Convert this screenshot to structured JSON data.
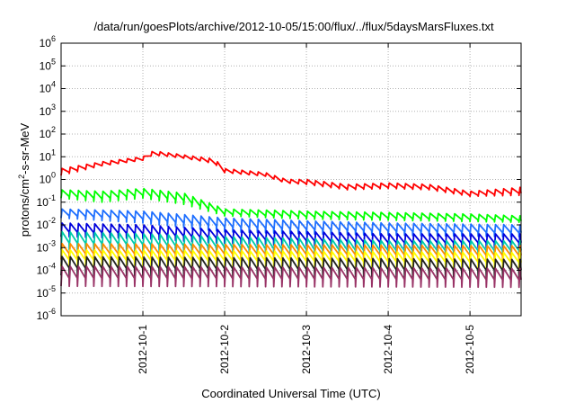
{
  "chart_data": {
    "type": "line",
    "title": "/data/run/goesPlots/archive/2012-10-05/15:00/flux/../flux/5daysMarsFluxes.txt",
    "xlabel": "Coordinated Universal Time (UTC)",
    "ylabel": {
      "base": "protons/cm",
      "sup": "2",
      "rest": "-s-sr-MeV"
    },
    "y_scale": "log",
    "ylim": [
      1e-06,
      1000000.0
    ],
    "y_ticks": [
      {
        "base": "10",
        "exp": "-6"
      },
      {
        "base": "10",
        "exp": "-5"
      },
      {
        "base": "10",
        "exp": "-4"
      },
      {
        "base": "10",
        "exp": "-3"
      },
      {
        "base": "10",
        "exp": "-2"
      },
      {
        "base": "10",
        "exp": "-1"
      },
      {
        "base": "10",
        "exp": "0"
      },
      {
        "base": "10",
        "exp": "1"
      },
      {
        "base": "10",
        "exp": "2"
      },
      {
        "base": "10",
        "exp": "3"
      },
      {
        "base": "10",
        "exp": "4"
      },
      {
        "base": "10",
        "exp": "5"
      },
      {
        "base": "10",
        "exp": "6"
      }
    ],
    "x_ticks": [
      "2012-10-1",
      "2012-10-2",
      "2012-10-3",
      "2012-10-4",
      "2012-10-5"
    ],
    "xlim": [
      "2012-09-30 00:00",
      "2012-10-05 15:00"
    ],
    "grid": true,
    "legend": "none",
    "series": [
      {
        "color": "#ff0000",
        "peaks": [
          [
            "2012-09-30 00:00",
            3
          ],
          [
            "2012-09-30 12:00",
            6
          ],
          [
            "2012-10-01 00:00",
            10
          ],
          [
            "2012-10-01 03:00",
            18
          ],
          [
            "2012-10-01 12:00",
            12
          ],
          [
            "2012-10-01 21:00",
            8
          ],
          [
            "2012-10-02 00:00",
            3
          ],
          [
            "2012-10-02 12:00",
            2
          ],
          [
            "2012-10-02 18:00",
            1
          ],
          [
            "2012-10-03 00:00",
            1
          ],
          [
            "2012-10-03 12:00",
            0.6
          ],
          [
            "2012-10-04 00:00",
            0.7
          ],
          [
            "2012-10-04 12:00",
            0.6
          ],
          [
            "2012-10-05 00:00",
            0.3
          ],
          [
            "2012-10-05 15:00",
            0.45
          ]
        ],
        "troughs": [
          [
            "2012-09-30 00:00",
            1.5
          ],
          [
            "2012-09-30 12:00",
            4
          ],
          [
            "2012-10-01 00:00",
            7
          ],
          [
            "2012-10-01 03:00",
            12
          ],
          [
            "2012-10-01 12:00",
            9
          ],
          [
            "2012-10-01 21:00",
            5
          ],
          [
            "2012-10-02 00:00",
            2
          ],
          [
            "2012-10-02 12:00",
            1.4
          ],
          [
            "2012-10-02 18:00",
            0.7
          ],
          [
            "2012-10-03 00:00",
            0.6
          ],
          [
            "2012-10-03 12:00",
            0.35
          ],
          [
            "2012-10-04 00:00",
            0.4
          ],
          [
            "2012-10-04 12:00",
            0.35
          ],
          [
            "2012-10-05 00:00",
            0.18
          ],
          [
            "2012-10-05 15:00",
            0.2
          ]
        ]
      },
      {
        "color": "#00ff00",
        "peaks": [
          [
            "2012-09-30 00:00",
            0.35
          ],
          [
            "2012-09-30 12:00",
            0.3
          ],
          [
            "2012-10-01 00:00",
            0.4
          ],
          [
            "2012-10-01 12:00",
            0.25
          ],
          [
            "2012-10-02 00:00",
            0.05
          ],
          [
            "2012-10-03 00:00",
            0.04
          ],
          [
            "2012-10-04 00:00",
            0.035
          ],
          [
            "2012-10-05 00:00",
            0.03
          ],
          [
            "2012-10-05 15:00",
            0.025
          ]
        ],
        "troughs": [
          [
            "2012-09-30 00:00",
            0.15
          ],
          [
            "2012-09-30 12:00",
            0.1
          ],
          [
            "2012-10-01 00:00",
            0.15
          ],
          [
            "2012-10-01 12:00",
            0.08
          ],
          [
            "2012-10-02 00:00",
            0.025
          ],
          [
            "2012-10-03 00:00",
            0.018
          ],
          [
            "2012-10-04 00:00",
            0.016
          ],
          [
            "2012-10-05 00:00",
            0.014
          ],
          [
            "2012-10-05 15:00",
            0.013
          ]
        ]
      },
      {
        "color": "#1e6fff",
        "peaks": [
          [
            "2012-09-30 00:00",
            0.05
          ],
          [
            "2012-10-01 00:00",
            0.04
          ],
          [
            "2012-10-02 00:00",
            0.02
          ],
          [
            "2012-10-03 00:00",
            0.015
          ],
          [
            "2012-10-04 00:00",
            0.012
          ],
          [
            "2012-10-05 15:00",
            0.01
          ]
        ],
        "troughs": [
          [
            "2012-09-30 00:00",
            0.02
          ],
          [
            "2012-10-01 00:00",
            0.012
          ],
          [
            "2012-10-02 00:00",
            0.005
          ],
          [
            "2012-10-03 00:00",
            0.004
          ],
          [
            "2012-10-04 00:00",
            0.0035
          ],
          [
            "2012-10-05 15:00",
            0.003
          ]
        ]
      },
      {
        "color": "#0000dd",
        "peaks": [
          [
            "2012-09-30 00:00",
            0.012
          ],
          [
            "2012-10-01 00:00",
            0.01
          ],
          [
            "2012-10-02 00:00",
            0.006
          ],
          [
            "2012-10-03 00:00",
            0.005
          ],
          [
            "2012-10-04 00:00",
            0.004
          ],
          [
            "2012-10-05 15:00",
            0.004
          ]
        ],
        "troughs": [
          [
            "2012-09-30 00:00",
            0.003
          ],
          [
            "2012-10-01 00:00",
            0.0025
          ],
          [
            "2012-10-02 00:00",
            0.0015
          ],
          [
            "2012-10-03 00:00",
            0.0012
          ],
          [
            "2012-10-04 00:00",
            0.001
          ],
          [
            "2012-10-05 15:00",
            0.001
          ]
        ]
      },
      {
        "color": "#00ccaa",
        "peaks": [
          [
            "2012-09-30 00:00",
            0.005
          ],
          [
            "2012-10-01 00:00",
            0.004
          ],
          [
            "2012-10-02 00:00",
            0.003
          ],
          [
            "2012-10-03 00:00",
            0.0025
          ],
          [
            "2012-10-04 00:00",
            0.002
          ],
          [
            "2012-10-05 15:00",
            0.002
          ]
        ],
        "troughs": [
          [
            "2012-09-30 00:00",
            0.0008
          ],
          [
            "2012-10-01 00:00",
            0.0007
          ],
          [
            "2012-10-02 00:00",
            0.0005
          ],
          [
            "2012-10-03 00:00",
            0.0004
          ],
          [
            "2012-10-04 00:00",
            0.0004
          ],
          [
            "2012-10-05 15:00",
            0.0004
          ]
        ]
      },
      {
        "color": "#ff8c00",
        "peaks": [
          [
            "2012-09-30 00:00",
            0.0015
          ],
          [
            "2012-10-05 15:00",
            0.0012
          ]
        ],
        "troughs": [
          [
            "2012-09-30 00:00",
            0.0003
          ],
          [
            "2012-10-05 15:00",
            0.00025
          ]
        ]
      },
      {
        "color": "#ffff00",
        "peaks": [
          [
            "2012-09-30 00:00",
            0.0008
          ],
          [
            "2012-10-05 15:00",
            0.0006
          ]
        ],
        "troughs": [
          [
            "2012-09-30 00:00",
            0.00015
          ],
          [
            "2012-10-05 15:00",
            0.00012
          ]
        ]
      },
      {
        "color": "#222222",
        "peaks": [
          [
            "2012-09-30 00:00",
            0.0004
          ],
          [
            "2012-10-05 15:00",
            0.0003
          ]
        ],
        "troughs": [
          [
            "2012-09-30 00:00",
            6e-05
          ],
          [
            "2012-10-05 15:00",
            5e-05
          ]
        ]
      },
      {
        "color": "#993366",
        "peaks": [
          [
            "2012-09-30 00:00",
            0.00015
          ],
          [
            "2012-10-05 15:00",
            0.00012
          ]
        ],
        "troughs": [
          [
            "2012-09-30 00:00",
            2e-05
          ],
          [
            "2012-10-05 15:00",
            1.8e-05
          ]
        ]
      }
    ]
  }
}
